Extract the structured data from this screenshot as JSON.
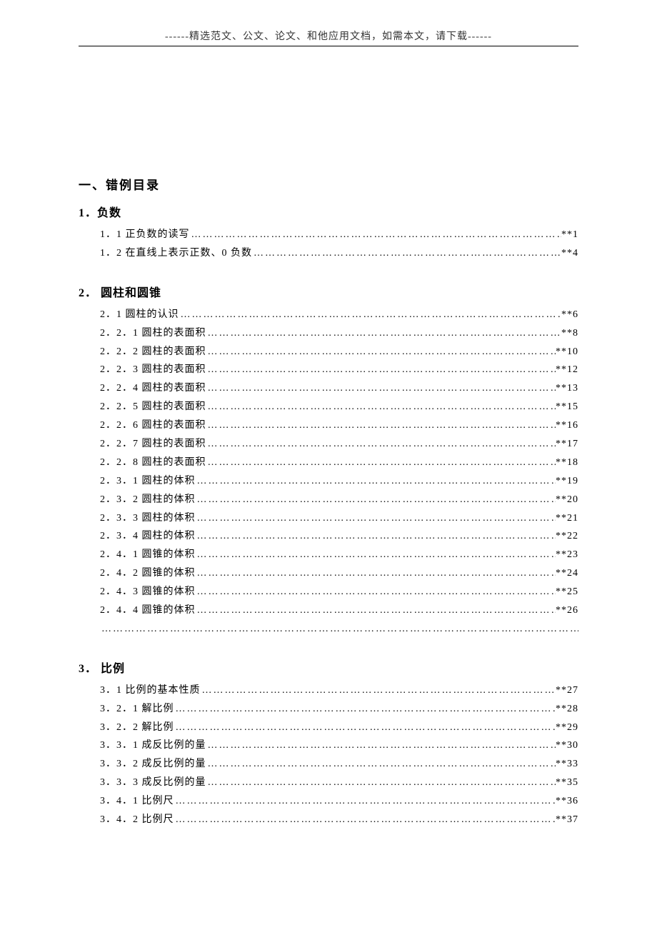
{
  "header": {
    "text": "------精选范文、公文、论文、和他应用文档，如需本文，请下载------"
  },
  "main_title": "一、错例目录",
  "dot_fill": "………………………………………………………………………………………………………………………………………………",
  "sections": [
    {
      "title": "1．负数",
      "entries": [
        {
          "label": "1．1 正负数的读写",
          "page": "**1"
        },
        {
          "label": "1．2 在直线上表示正数、0 负数",
          "page": "**4"
        }
      ]
    },
    {
      "title": "2．  圆柱和圆锥",
      "entries": [
        {
          "label": "2．1 圆柱的认识",
          "page": "**6"
        },
        {
          "label": "2．2．1 圆柱的表面积",
          "page": "**8"
        },
        {
          "label": "2．2．2 圆柱的表面积",
          "page": "**10"
        },
        {
          "label": "2．2．3 圆柱的表面积",
          "page": "**12"
        },
        {
          "label": "2．2．4 圆柱的表面积",
          "page": "**13"
        },
        {
          "label": "2．2．5 圆柱的表面积",
          "page": "**15"
        },
        {
          "label": "2．2．6 圆柱的表面积",
          "page": "**16"
        },
        {
          "label": "2．2．7 圆柱的表面积",
          "page": "**17"
        },
        {
          "label": "2．2．8 圆柱的表面积",
          "page": "**18"
        },
        {
          "label": "2．3．1 圆柱的体积",
          "page": "**19"
        },
        {
          "label": "2．3．2 圆柱的体积",
          "page": "**20"
        },
        {
          "label": "2．3．3 圆柱的体积",
          "page": "**21"
        },
        {
          "label": "2．3．4 圆柱的体积",
          "page": "**22"
        },
        {
          "label": "2．4．1 圆锥的体积",
          "page": "**23"
        },
        {
          "label": "2．4．2 圆锥的体积",
          "page": "**24"
        },
        {
          "label": "2．4．3 圆锥的体积",
          "page": "**25"
        },
        {
          "label": "2．4．4 圆锥的体积",
          "page": "**26"
        }
      ]
    },
    {
      "title": "3．  比例",
      "entries": [
        {
          "label": "3．1 比例的基本性质",
          "page": "**27"
        },
        {
          "label": "3．2．1 解比例",
          "page": "**28"
        },
        {
          "label": "3．2．2 解比例",
          "page": "**29"
        },
        {
          "label": "3．3．1 成反比例的量",
          "page": "**30"
        },
        {
          "label": "3．3．2 成反比例的量",
          "page": "**33"
        },
        {
          "label": "3．3．3 成反比例的量",
          "page": "**35"
        },
        {
          "label": "3．4．1 比例尺",
          "page": "**36"
        },
        {
          "label": "3．4．2 比例尺",
          "page": "**37"
        }
      ]
    }
  ]
}
